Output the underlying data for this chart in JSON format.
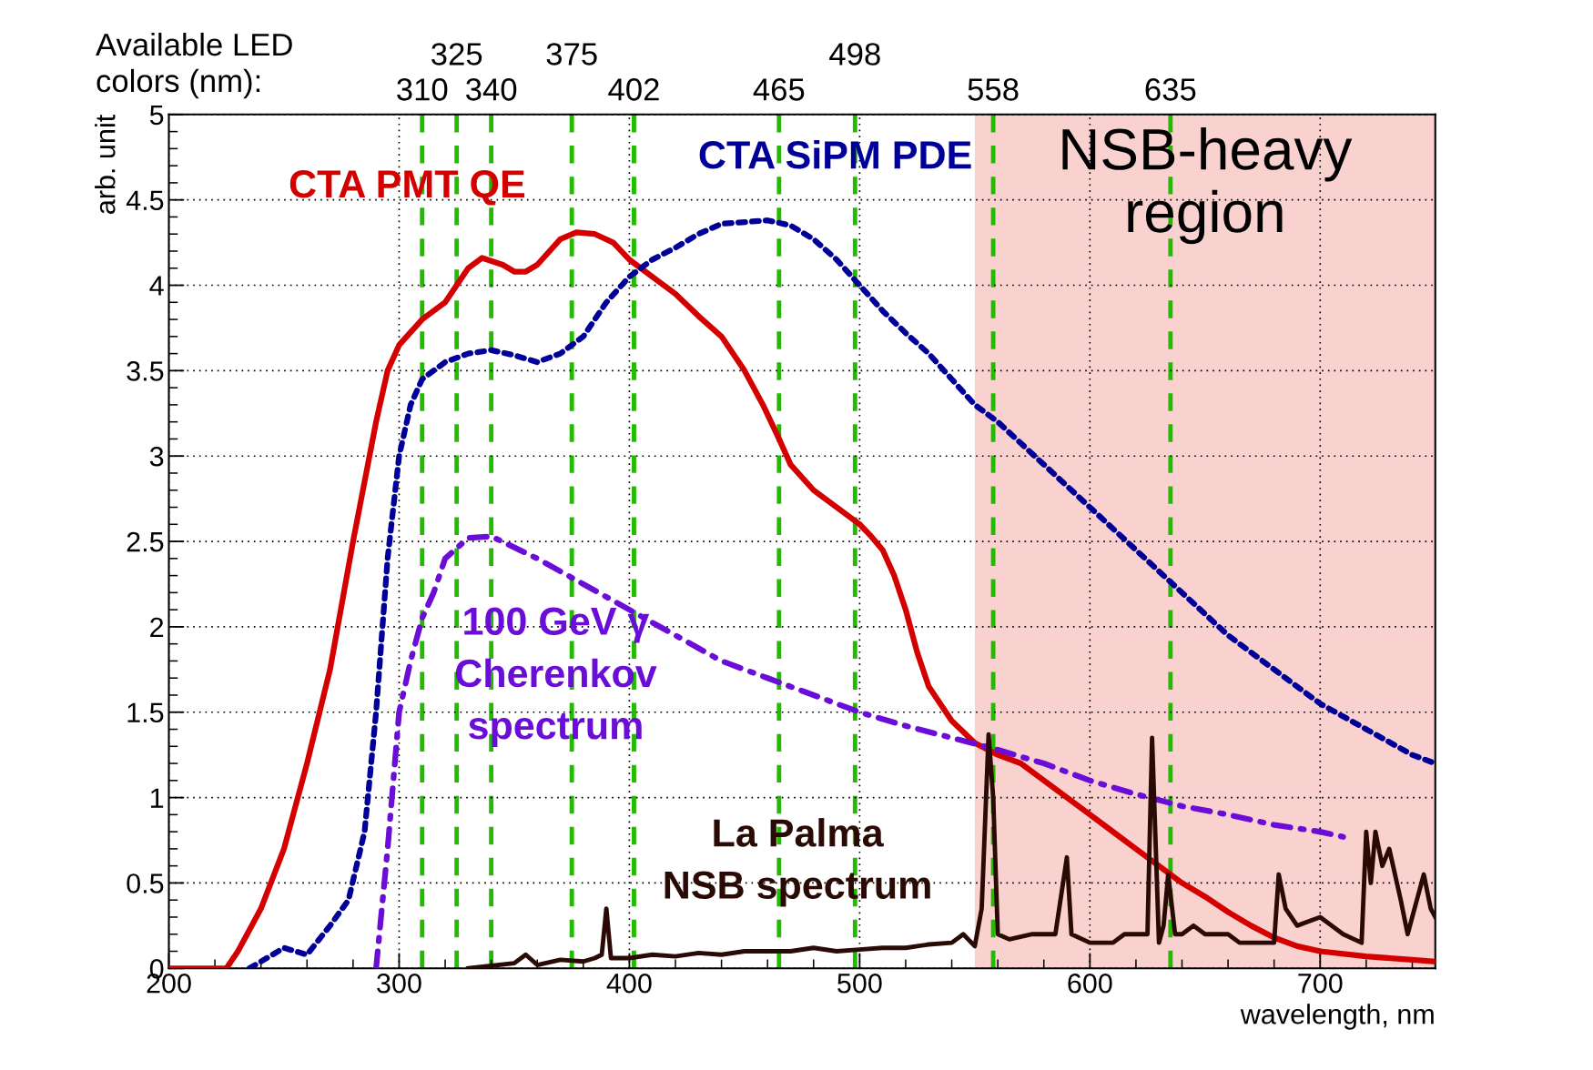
{
  "chart_data": {
    "type": "line",
    "xlabel": "wavelength, nm",
    "ylabel": "arb. unit",
    "xlim": [
      200,
      750
    ],
    "xticks": [
      200,
      300,
      400,
      500,
      600,
      700
    ],
    "ylim": [
      0,
      5
    ],
    "yticks": [
      0,
      0.5,
      1,
      1.5,
      2,
      2.5,
      3,
      3.5,
      4,
      4.5,
      5
    ],
    "grid": true,
    "legend": false,
    "series": [
      {
        "name": "CTA PMT QE",
        "color": "#d40000",
        "line_style": "solid",
        "x": [
          200,
          225,
          230,
          240,
          250,
          260,
          270,
          280,
          290,
          295,
          300,
          310,
          320,
          330,
          336,
          345,
          350,
          355,
          360,
          370,
          377,
          385,
          393,
          400,
          410,
          420,
          430,
          440,
          450,
          458,
          465,
          470,
          480,
          490,
          500,
          505,
          510,
          515,
          520,
          525,
          530,
          540,
          550,
          560,
          570,
          580,
          590,
          600,
          610,
          620,
          630,
          640,
          650,
          660,
          670,
          680,
          690,
          700,
          720,
          740,
          750
        ],
        "values": [
          0,
          0,
          0.1,
          0.35,
          0.7,
          1.2,
          1.75,
          2.5,
          3.2,
          3.5,
          3.65,
          3.8,
          3.9,
          4.1,
          4.16,
          4.12,
          4.08,
          4.08,
          4.12,
          4.27,
          4.31,
          4.3,
          4.25,
          4.15,
          4.05,
          3.95,
          3.82,
          3.7,
          3.5,
          3.3,
          3.1,
          2.95,
          2.8,
          2.7,
          2.6,
          2.53,
          2.45,
          2.3,
          2.1,
          1.85,
          1.65,
          1.45,
          1.32,
          1.25,
          1.2,
          1.1,
          1.0,
          0.9,
          0.8,
          0.7,
          0.6,
          0.5,
          0.42,
          0.33,
          0.25,
          0.18,
          0.13,
          0.1,
          0.07,
          0.05,
          0.04
        ]
      },
      {
        "name": "CTA SiPM PDE",
        "color": "#000099",
        "line_style": "dotted",
        "x": [
          235,
          245,
          250,
          260,
          270,
          278,
          285,
          290,
          295,
          300,
          305,
          310,
          320,
          330,
          340,
          350,
          360,
          370,
          380,
          390,
          400,
          410,
          420,
          430,
          440,
          460,
          470,
          480,
          490,
          500,
          510,
          520,
          530,
          540,
          550,
          560,
          580,
          600,
          620,
          640,
          660,
          680,
          700,
          720,
          740,
          750
        ],
        "values": [
          0,
          0.08,
          0.12,
          0.08,
          0.25,
          0.4,
          0.8,
          1.5,
          2.4,
          3.0,
          3.3,
          3.45,
          3.55,
          3.6,
          3.62,
          3.59,
          3.55,
          3.6,
          3.7,
          3.9,
          4.05,
          4.15,
          4.22,
          4.3,
          4.36,
          4.38,
          4.35,
          4.27,
          4.15,
          4.0,
          3.85,
          3.72,
          3.6,
          3.45,
          3.3,
          3.2,
          2.95,
          2.7,
          2.45,
          2.2,
          1.95,
          1.75,
          1.55,
          1.4,
          1.25,
          1.2
        ]
      },
      {
        "name": "100 GeV γ\nCherenkov\nspectrum",
        "color": "#6a0dd6",
        "line_style": "dashdot",
        "x": [
          290,
          295,
          300,
          305,
          310,
          315,
          320,
          330,
          340,
          360,
          380,
          400,
          420,
          440,
          460,
          480,
          500,
          520,
          540,
          560,
          580,
          600,
          620,
          640,
          660,
          680,
          700,
          710
        ],
        "values": [
          0,
          0.7,
          1.5,
          1.8,
          2.05,
          2.2,
          2.4,
          2.52,
          2.53,
          2.4,
          2.25,
          2.1,
          1.95,
          1.8,
          1.7,
          1.6,
          1.5,
          1.42,
          1.35,
          1.28,
          1.2,
          1.1,
          1.02,
          0.95,
          0.9,
          0.84,
          0.8,
          0.77
        ]
      },
      {
        "name": "La Palma\nNSB spectrum",
        "color": "#2a0a05",
        "line_style": "solid",
        "x": [
          330,
          350,
          355,
          360,
          370,
          380,
          385,
          388,
          390,
          392,
          400,
          410,
          420,
          430,
          440,
          450,
          460,
          470,
          480,
          490,
          500,
          510,
          520,
          530,
          540,
          545,
          550,
          553,
          556,
          558,
          560,
          565,
          575,
          585,
          590,
          592,
          600,
          610,
          615,
          620,
          625,
          627,
          630,
          632,
          634,
          637,
          640,
          645,
          650,
          655,
          660,
          665,
          670,
          680,
          682,
          685,
          690,
          700,
          710,
          718,
          720,
          722,
          724,
          727,
          730,
          735,
          738,
          740,
          745,
          748,
          750
        ],
        "values": [
          0,
          0.03,
          0.08,
          0.02,
          0.05,
          0.04,
          0.06,
          0.08,
          0.35,
          0.06,
          0.06,
          0.08,
          0.07,
          0.09,
          0.08,
          0.1,
          0.1,
          0.1,
          0.12,
          0.1,
          0.11,
          0.12,
          0.12,
          0.14,
          0.15,
          0.2,
          0.13,
          0.35,
          1.37,
          1.0,
          0.2,
          0.17,
          0.2,
          0.2,
          0.65,
          0.2,
          0.15,
          0.15,
          0.2,
          0.2,
          0.2,
          1.35,
          0.15,
          0.25,
          0.55,
          0.2,
          0.2,
          0.25,
          0.2,
          0.2,
          0.2,
          0.15,
          0.15,
          0.15,
          0.55,
          0.35,
          0.25,
          0.3,
          0.2,
          0.15,
          0.8,
          0.5,
          0.8,
          0.6,
          0.7,
          0.4,
          0.2,
          0.3,
          0.55,
          0.35,
          0.3
        ]
      }
    ],
    "ref_lines": [
      {
        "axis": "x",
        "value": 310,
        "label": "310",
        "color": "#22bb00",
        "line_style": "dashed"
      },
      {
        "axis": "x",
        "value": 325,
        "label": "325",
        "color": "#22bb00",
        "line_style": "dashed"
      },
      {
        "axis": "x",
        "value": 340,
        "label": "340",
        "color": "#22bb00",
        "line_style": "dashed"
      },
      {
        "axis": "x",
        "value": 375,
        "label": "375",
        "color": "#22bb00",
        "line_style": "dashed"
      },
      {
        "axis": "x",
        "value": 402,
        "label": "402",
        "color": "#22bb00",
        "line_style": "dashed"
      },
      {
        "axis": "x",
        "value": 465,
        "label": "465",
        "color": "#22bb00",
        "line_style": "dashed"
      },
      {
        "axis": "x",
        "value": 498,
        "label": "498",
        "color": "#22bb00",
        "line_style": "dashed"
      },
      {
        "axis": "x",
        "value": 558,
        "label": "558",
        "color": "#22bb00",
        "line_style": "dashed"
      },
      {
        "axis": "x",
        "value": 635,
        "label": "635",
        "color": "#22bb00",
        "line_style": "dashed"
      }
    ],
    "bands": [
      {
        "axis": "x",
        "from": 550,
        "to": 750,
        "label": "NSB-heavy\nregion",
        "color": "#f9d2cf"
      }
    ],
    "annotations": [
      "Available LED\ncolors (nm):"
    ]
  }
}
